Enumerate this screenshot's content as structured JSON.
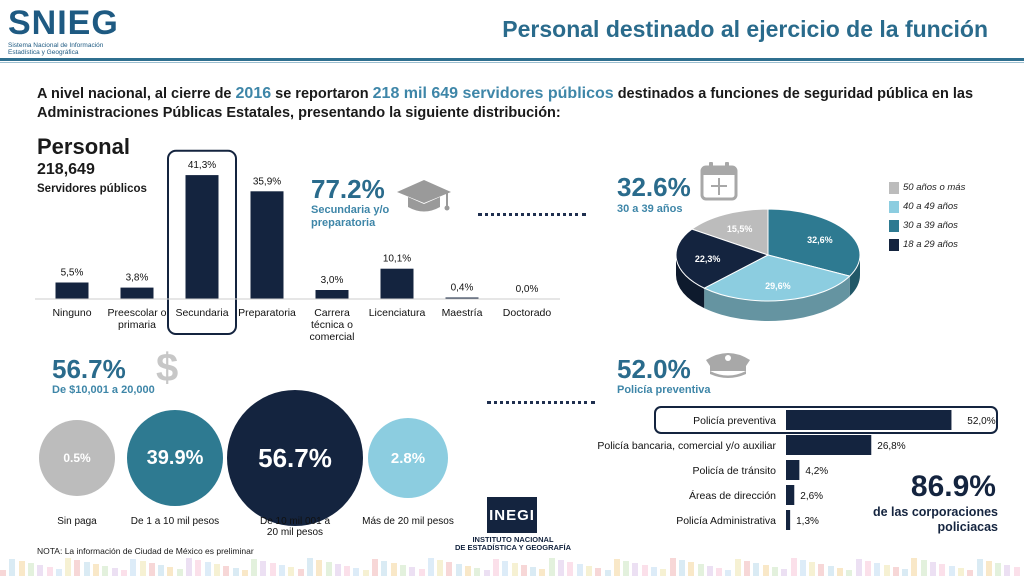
{
  "header": {
    "logo_text": "SNIEG",
    "logo_subtitle": "Sistema Nacional de Información Estadística y Geográfica",
    "title": "Personal destinado al ejercicio de la función"
  },
  "intro": {
    "part1": "A nivel nacional, al cierre de ",
    "year": "2016",
    "part2": " se reportaron ",
    "total": "218 mil 649 servidores públicos",
    "part3": " destinados a funciones de seguridad pública en las Administraciones Públicas Estatales, presentando la siguiente distribución:"
  },
  "personal": {
    "label": "Personal",
    "value": "218,649",
    "caption": "Servidores públicos"
  },
  "education_highlight": {
    "value": "77.2%",
    "caption": "Secundaria y/o preparatoria"
  },
  "age_highlight": {
    "value": "32.6%",
    "caption": "30 a 39 años"
  },
  "salary_highlight": {
    "value": "56.7%",
    "caption": "De $10,001 a 20,000"
  },
  "corp_highlight": {
    "value": "52.0%",
    "caption": "Policía preventiva"
  },
  "corp_total": {
    "value": "86.9%",
    "caption": "de las corporaciones policiacas"
  },
  "salary_symbol": "$",
  "note": "NOTA: La información de Ciudad de México es preliminar",
  "inegi": {
    "logo": "INEGI",
    "line1": "INSTITUTO NACIONAL",
    "line2": "DE ESTADÍSTICA Y GEOGRAFÍA"
  },
  "colors": {
    "navy": "#14243f",
    "teal": "#2e7a91",
    "light_blue": "#8ccde0",
    "gray": "#bcbcbc",
    "accent": "#2a6b8c"
  },
  "icons": [
    "graduation-cap-icon",
    "calendar-icon",
    "dollar-icon",
    "police-cap-icon"
  ],
  "chart_data": [
    {
      "type": "bar",
      "categories": [
        "Ninguno",
        "Preescolar o primaria",
        "Secundaria",
        "Preparatoria",
        "Carrera técnica o comercial",
        "Licenciatura",
        "Maestría",
        "Doctorado"
      ],
      "values": [
        5.5,
        3.8,
        41.3,
        35.9,
        3.0,
        10.1,
        0.4,
        0.0
      ],
      "labels": [
        "5,5%",
        "3,8%",
        "41,3%",
        "35,9%",
        "3,0%",
        "10,1%",
        "0,4%",
        "0,0%"
      ],
      "highlight": "Secundaria",
      "ylim": [
        0,
        45
      ]
    },
    {
      "type": "pie",
      "categories": [
        "50 años o más",
        "40 a 49 años",
        "30 a 39 años",
        "18 a 29 años"
      ],
      "values": [
        15.5,
        29.6,
        32.6,
        22.3
      ],
      "labels": [
        "15,5%",
        "29,6%",
        "32,6%",
        "22,3%"
      ],
      "colors": [
        "#bcbcbc",
        "#8ccde0",
        "#2e7a91",
        "#14243f"
      ],
      "legend": "right"
    },
    {
      "type": "bar",
      "categories": [
        "Sin paga",
        "De 1 a 10 mil pesos",
        "De 10 mil 001 a 20 mil pesos",
        "Más de 20 mil pesos"
      ],
      "values": [
        0.5,
        39.9,
        56.7,
        2.8
      ],
      "labels": [
        "0.5%",
        "39.9%",
        "56.7%",
        "2.8%"
      ],
      "colors": [
        "#bcbcbc",
        "#2e7a91",
        "#14243f",
        "#8ccde0"
      ]
    },
    {
      "type": "bar",
      "orientation": "horizontal",
      "categories": [
        "Policía preventiva",
        "Policía bancaria, comercial y/o auxiliar",
        "Policía de tránsito",
        "Áreas de dirección",
        "Policía Administrativa"
      ],
      "values": [
        52.0,
        26.8,
        4.2,
        2.6,
        1.3
      ],
      "labels": [
        "52,0%",
        "26,8%",
        "4,2%",
        "2,6%",
        "1,3%"
      ],
      "highlight": "Policía preventiva",
      "xlim": [
        0,
        55
      ]
    }
  ]
}
